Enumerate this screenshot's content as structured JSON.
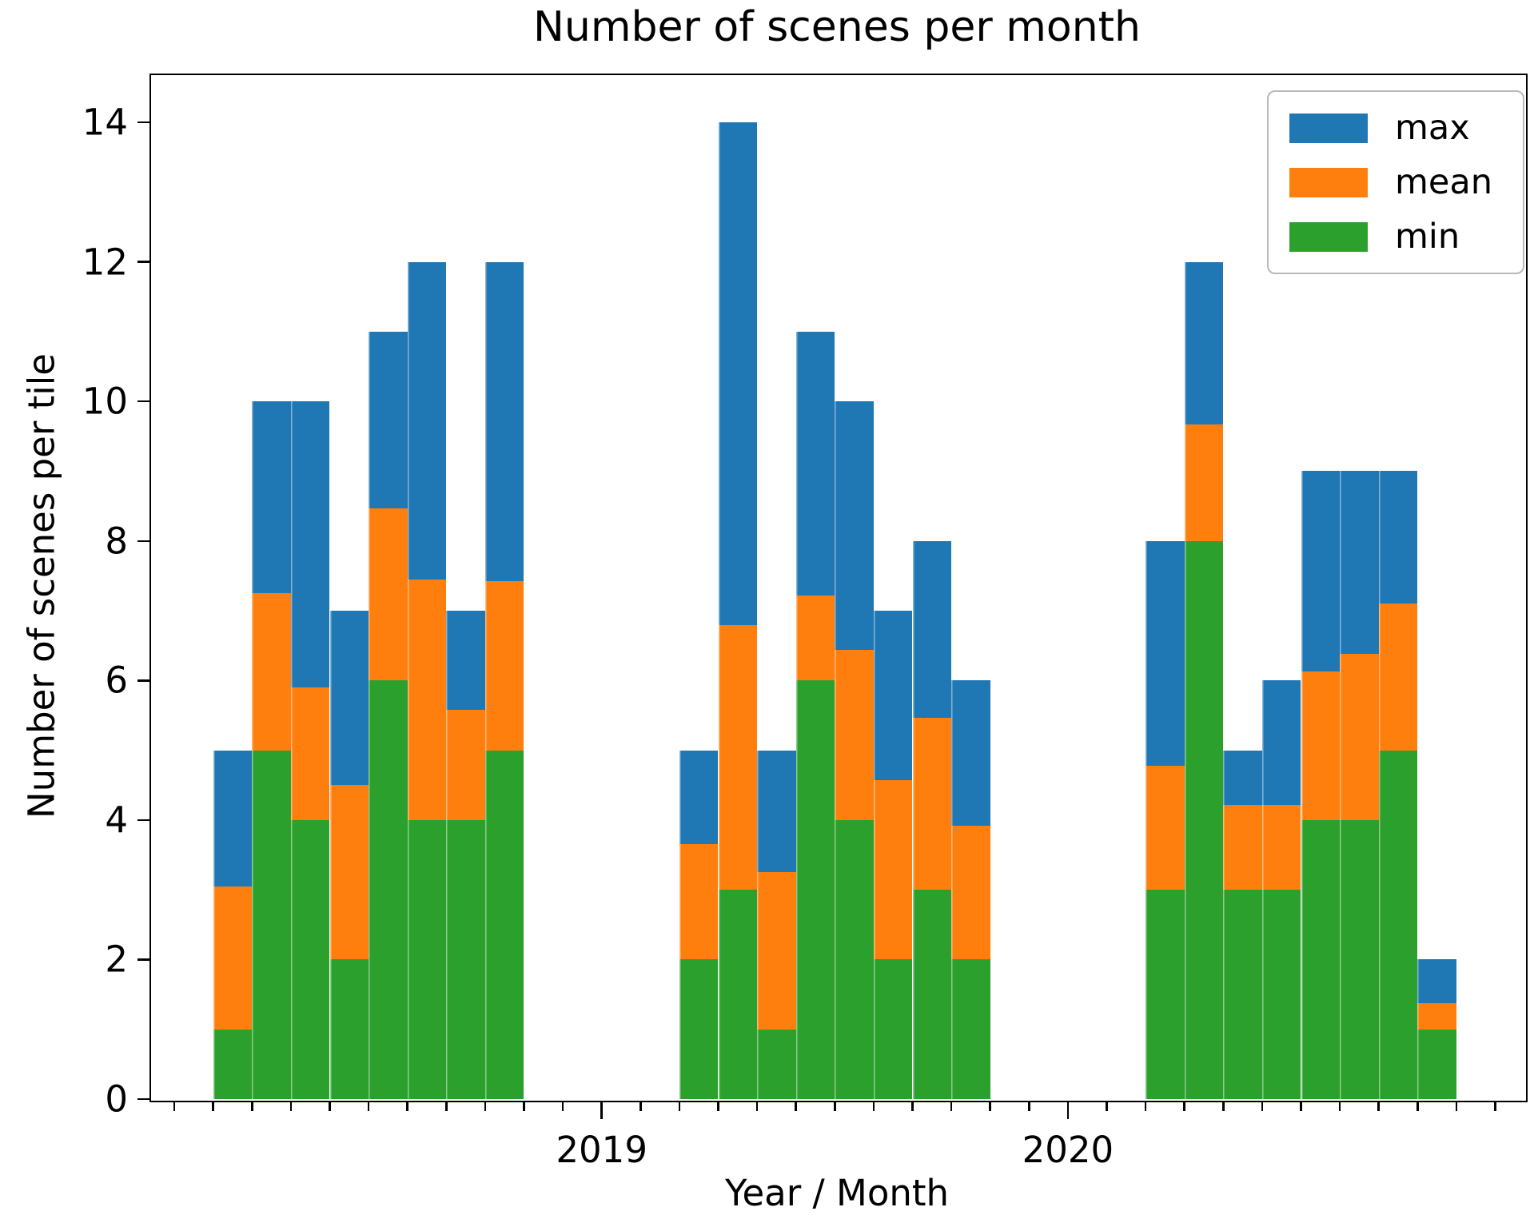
{
  "title": "Number of scenes per month",
  "xlabel": "Year / Month",
  "ylabel": "Number of scenes per tile",
  "colors": {
    "max": "#1f77b4",
    "mean": "#ff7f0e",
    "min": "#2ca02c",
    "axis": "#000000",
    "legend_border": "#b9b9b9"
  },
  "legend": {
    "entries": [
      {
        "label": "max",
        "color": "#1f77b4"
      },
      {
        "label": "mean",
        "color": "#ff7f0e"
      },
      {
        "label": "min",
        "color": "#2ca02c"
      }
    ]
  },
  "chart_data": {
    "type": "bar",
    "mode": "overlaid-minmeanmax-monthly",
    "title": "Number of scenes per month",
    "xlabel": "Year / Month",
    "ylabel": "Number of scenes per tile",
    "ylim": [
      0,
      14.7
    ],
    "yticks": [
      0,
      2,
      4,
      6,
      8,
      10,
      12,
      14
    ],
    "grid": false,
    "legend_position": "upper right",
    "series_names": [
      "max",
      "mean",
      "min"
    ],
    "month_tick_range": [
      0,
      34
    ],
    "xticks": [
      {
        "label": "2019",
        "month_index": 11
      },
      {
        "label": "2020",
        "month_index": 23
      }
    ],
    "groups": [
      {
        "start_month_index": 1,
        "bars": [
          {
            "max": 5,
            "mean": 3.05,
            "min": 1
          },
          {
            "max": 10,
            "mean": 7.25,
            "min": 5
          },
          {
            "max": 10,
            "mean": 5.9,
            "min": 4
          },
          {
            "max": 7,
            "mean": 4.5,
            "min": 2
          },
          {
            "max": 11,
            "mean": 8.47,
            "min": 6
          },
          {
            "max": 12,
            "mean": 7.45,
            "min": 4
          },
          {
            "max": 7,
            "mean": 5.58,
            "min": 4
          },
          {
            "max": 12,
            "mean": 7.43,
            "min": 5
          }
        ]
      },
      {
        "start_month_index": 13,
        "bars": [
          {
            "max": 5,
            "mean": 3.65,
            "min": 2
          },
          {
            "max": 14,
            "mean": 6.8,
            "min": 3
          },
          {
            "max": 5,
            "mean": 3.25,
            "min": 1
          },
          {
            "max": 11,
            "mean": 7.22,
            "min": 6
          },
          {
            "max": 10,
            "mean": 6.44,
            "min": 4
          },
          {
            "max": 7,
            "mean": 4.57,
            "min": 2
          },
          {
            "max": 8,
            "mean": 5.47,
            "min": 3
          },
          {
            "max": 6,
            "mean": 3.92,
            "min": 2
          }
        ]
      },
      {
        "start_month_index": 25,
        "bars": [
          {
            "max": 8,
            "mean": 4.78,
            "min": 3
          },
          {
            "max": 12,
            "mean": 9.67,
            "min": 8
          },
          {
            "max": 5,
            "mean": 4.22,
            "min": 3
          },
          {
            "max": 6,
            "mean": 4.22,
            "min": 3
          },
          {
            "max": 9,
            "mean": 6.13,
            "min": 4
          },
          {
            "max": 9,
            "mean": 6.38,
            "min": 4
          },
          {
            "max": 9,
            "mean": 7.1,
            "min": 5
          },
          {
            "max": 2,
            "mean": 1.37,
            "min": 1
          }
        ]
      }
    ]
  }
}
